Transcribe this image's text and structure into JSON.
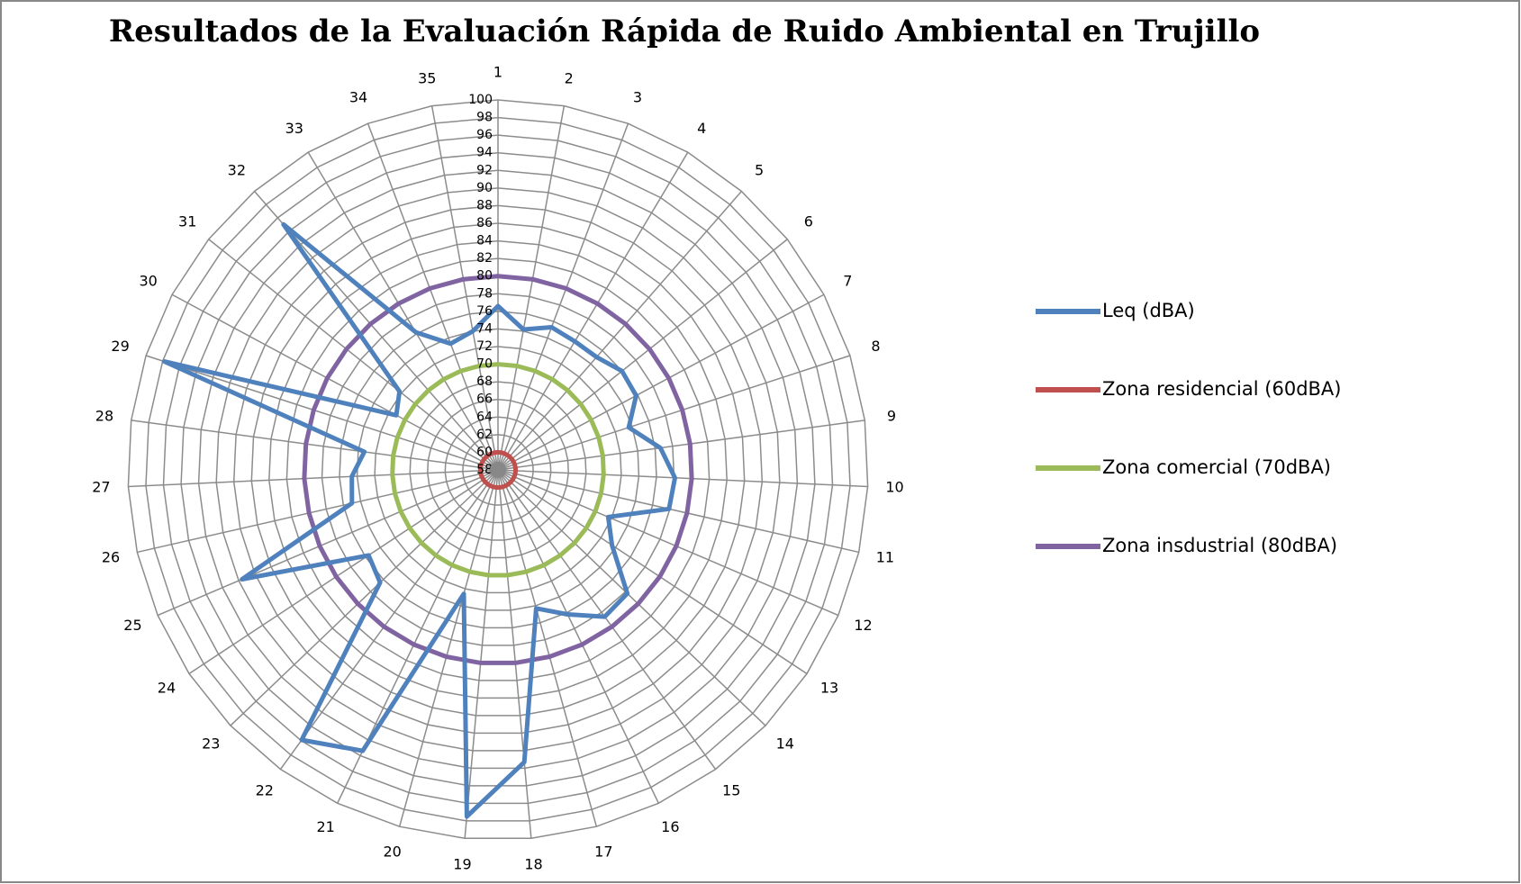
{
  "chart_data": {
    "type": "radar",
    "title": "Resultados de la Evaluación Rápida de Ruido Ambiental en Trujillo",
    "categories": [
      "1",
      "2",
      "3",
      "4",
      "5",
      "6",
      "7",
      "8",
      "9",
      "10",
      "11",
      "12",
      "13",
      "14",
      "15",
      "16",
      "17",
      "18",
      "19",
      "20",
      "21",
      "22",
      "23",
      "24",
      "25",
      "26",
      "27",
      "28",
      "29",
      "30",
      "31",
      "32",
      "33",
      "34",
      "35"
    ],
    "series": [
      {
        "name": "Leq (dBA)",
        "color": "#4f81bd",
        "values": [
          76.6,
          74.2,
          75.3,
          75,
          75,
          76,
          75.8,
          73.6,
          76.6,
          78.1,
          77.9,
          71.6,
          73.5,
          78.3,
          78.6,
          76.2,
          74.3,
          91.3,
          97.5,
          72.6,
          93.4,
          95.9,
          76.5,
          75.6,
          89.6,
          75,
          74.6,
          73.3,
          97.8,
          71.1,
          72.3,
          95,
          76.2,
          73.3,
          74
        ]
      },
      {
        "name": "Zona residencial (60dBA)",
        "color": "#c0504d",
        "values": [
          60,
          60,
          60,
          60,
          60,
          60,
          60,
          60,
          60,
          60,
          60,
          60,
          60,
          60,
          60,
          60,
          60,
          60,
          60,
          60,
          60,
          60,
          60,
          60,
          60,
          60,
          60,
          60,
          60,
          60,
          60,
          60,
          60,
          60,
          60
        ]
      },
      {
        "name": "Zona comercial (70dBA)",
        "color": "#9bbb59",
        "values": [
          70,
          70,
          70,
          70,
          70,
          70,
          70,
          70,
          70,
          70,
          70,
          70,
          70,
          70,
          70,
          70,
          70,
          70,
          70,
          70,
          70,
          70,
          70,
          70,
          70,
          70,
          70,
          70,
          70,
          70,
          70,
          70,
          70,
          70,
          70
        ]
      },
      {
        "name": "Zona insdustrial (80dBA)",
        "color": "#8064a2",
        "values": [
          80,
          80,
          80,
          80,
          80,
          80,
          80,
          80,
          80,
          80,
          80,
          80,
          80,
          80,
          80,
          80,
          80,
          80,
          80,
          80,
          80,
          80,
          80,
          80,
          80,
          80,
          80,
          80,
          80,
          80,
          80,
          80,
          80,
          80,
          80
        ]
      }
    ],
    "ylim": [
      58,
      100
    ],
    "yticks": [
      58,
      60,
      62,
      64,
      66,
      68,
      70,
      72,
      74,
      76,
      78,
      80,
      82,
      84,
      86,
      88,
      90,
      92,
      94,
      96,
      98,
      100
    ],
    "grid": true,
    "legend": "right"
  }
}
